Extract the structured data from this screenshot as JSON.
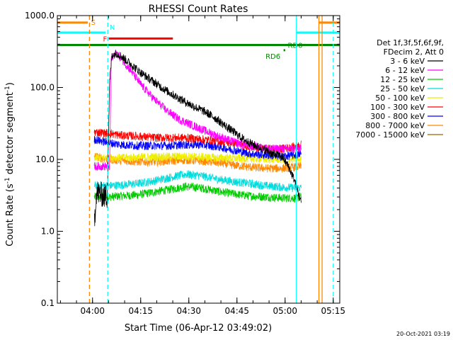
{
  "chart_data": {
    "type": "line",
    "title": "RHESSI Count Rates",
    "xlabel": "Start Time (06-Apr-12 03:49:02)",
    "ylabel_main": "Count Rate (s",
    "ylabel_sup1": "-1",
    "ylabel_mid": " detector segment",
    "ylabel_sup2": "-1",
    "ylabel_end": ")",
    "y_scale": "log",
    "ylim": [
      0.1,
      1000
    ],
    "xlim_minutes_after_start": [
      0,
      88
    ],
    "x_ticks": [
      {
        "label": "04:00",
        "minutes": 10.97
      },
      {
        "label": "04:15",
        "minutes": 25.97
      },
      {
        "label": "04:30",
        "minutes": 40.97
      },
      {
        "label": "04:45",
        "minutes": 55.97
      },
      {
        "label": "05:00",
        "minutes": 70.97
      },
      {
        "label": "05:15",
        "minutes": 85.97
      }
    ],
    "y_ticks": [
      {
        "label": "1000.0",
        "value": 1000
      },
      {
        "label": "100.0",
        "value": 100
      },
      {
        "label": "10.0",
        "value": 10
      },
      {
        "label": "1.0",
        "value": 1
      },
      {
        "label": "0.1",
        "value": 0.1
      }
    ],
    "legend": {
      "header1": "Det 1f,3f,5f,6f,9f,",
      "header2": "FDecim 2, Att 0",
      "placement": "right"
    },
    "series": [
      {
        "name": "3 - 6 keV",
        "color": "#000000",
        "points": [
          [
            11.5,
            1.3
          ],
          [
            12.2,
            3.5
          ],
          [
            14,
            3.2
          ],
          [
            15.5,
            3.0
          ],
          [
            16.3,
            120
          ],
          [
            17,
            280
          ],
          [
            18.5,
            300
          ],
          [
            20,
            270
          ],
          [
            23,
            210
          ],
          [
            26,
            160
          ],
          [
            30,
            120
          ],
          [
            34,
            90
          ],
          [
            38,
            70
          ],
          [
            42,
            56
          ],
          [
            46,
            46
          ],
          [
            49,
            38
          ],
          [
            52,
            30
          ],
          [
            55,
            24
          ],
          [
            58,
            19
          ],
          [
            61,
            16
          ],
          [
            64,
            14
          ],
          [
            67,
            12
          ],
          [
            70,
            11
          ],
          [
            72,
            8
          ],
          [
            74,
            5
          ],
          [
            75,
            3.5
          ],
          [
            76,
            2.5
          ]
        ]
      },
      {
        "name": "6 - 12 keV",
        "color": "#ff00ff",
        "points": [
          [
            11.5,
            8
          ],
          [
            14,
            8
          ],
          [
            16.3,
            8
          ],
          [
            16.8,
            250
          ],
          [
            18.5,
            300
          ],
          [
            20,
            250
          ],
          [
            23,
            170
          ],
          [
            26,
            110
          ],
          [
            30,
            70
          ],
          [
            34,
            48
          ],
          [
            38,
            36
          ],
          [
            42,
            30
          ],
          [
            46,
            25
          ],
          [
            50,
            21
          ],
          [
            54,
            18
          ],
          [
            58,
            16
          ],
          [
            62,
            15
          ],
          [
            66,
            14
          ],
          [
            70,
            14
          ],
          [
            74,
            14
          ],
          [
            76,
            14
          ]
        ]
      },
      {
        "name": "12 - 25 keV",
        "color": "#00cc00",
        "points": [
          [
            11.5,
            3.0
          ],
          [
            16,
            3.0
          ],
          [
            20,
            3.1
          ],
          [
            25,
            3.2
          ],
          [
            30,
            3.5
          ],
          [
            35,
            3.8
          ],
          [
            40,
            4.2
          ],
          [
            45,
            4.0
          ],
          [
            50,
            3.6
          ],
          [
            55,
            3.3
          ],
          [
            60,
            3.1
          ],
          [
            65,
            3.0
          ],
          [
            70,
            2.9
          ],
          [
            74,
            2.9
          ],
          [
            76,
            3.0
          ]
        ]
      },
      {
        "name": "25 - 50 keV",
        "color": "#00dddd",
        "points": [
          [
            11.5,
            4.3
          ],
          [
            16,
            4.3
          ],
          [
            20,
            4.4
          ],
          [
            25,
            4.6
          ],
          [
            30,
            5.0
          ],
          [
            35,
            5.6
          ],
          [
            40,
            6.2
          ],
          [
            45,
            5.9
          ],
          [
            50,
            5.3
          ],
          [
            55,
            4.9
          ],
          [
            60,
            4.6
          ],
          [
            65,
            4.3
          ],
          [
            70,
            4.1
          ],
          [
            74,
            4.0
          ],
          [
            76,
            4.0
          ]
        ]
      },
      {
        "name": "50 - 100 keV",
        "color": "#eeee00",
        "points": [
          [
            11.5,
            10.5
          ],
          [
            20,
            10.5
          ],
          [
            30,
            10.8
          ],
          [
            40,
            11.0
          ],
          [
            50,
            10.5
          ],
          [
            60,
            10.3
          ],
          [
            70,
            10.0
          ],
          [
            76,
            10.0
          ]
        ]
      },
      {
        "name": "100 - 300 keV",
        "color": "#ff0000",
        "points": [
          [
            11.5,
            24
          ],
          [
            16,
            23
          ],
          [
            20,
            21.5
          ],
          [
            25,
            21
          ],
          [
            30,
            20
          ],
          [
            35,
            20
          ],
          [
            40,
            20
          ],
          [
            45,
            19
          ],
          [
            50,
            18
          ],
          [
            55,
            17
          ],
          [
            60,
            15
          ],
          [
            65,
            14
          ],
          [
            70,
            14
          ],
          [
            74,
            15
          ],
          [
            76,
            16
          ]
        ]
      },
      {
        "name": "300 - 800 keV",
        "color": "#0000ff",
        "points": [
          [
            11.5,
            19
          ],
          [
            16,
            17
          ],
          [
            20,
            16
          ],
          [
            25,
            15.5
          ],
          [
            30,
            15.5
          ],
          [
            35,
            15.5
          ],
          [
            40,
            16
          ],
          [
            45,
            16
          ],
          [
            50,
            15
          ],
          [
            55,
            13.5
          ],
          [
            60,
            12
          ],
          [
            65,
            11.5
          ],
          [
            70,
            11
          ],
          [
            74,
            11.5
          ],
          [
            76,
            12
          ]
        ]
      },
      {
        "name": "800 - 7000 keV",
        "color": "#ff8800",
        "points": [
          [
            11.5,
            11
          ],
          [
            16,
            10
          ],
          [
            20,
            9.6
          ],
          [
            25,
            9.3
          ],
          [
            30,
            9.2
          ],
          [
            35,
            9.5
          ],
          [
            40,
            9.8
          ],
          [
            45,
            9.5
          ],
          [
            50,
            9.0
          ],
          [
            55,
            8.3
          ],
          [
            60,
            7.8
          ],
          [
            65,
            7.5
          ],
          [
            70,
            7.5
          ],
          [
            74,
            7.8
          ],
          [
            76,
            8.0
          ]
        ]
      },
      {
        "name": "7000 - 15000 keV",
        "color": "#996600",
        "points": []
      }
    ],
    "flags": {
      "S": {
        "label": "S",
        "color": "#ff8800",
        "y_value": 800,
        "segments": [
          [
            0,
            9.5
          ],
          [
            81.5,
            88
          ]
        ]
      },
      "N": {
        "label": "N",
        "color": "#00ffff",
        "y_value": 580,
        "segments": [
          [
            0,
            15
          ],
          [
            74.5,
            88
          ]
        ]
      },
      "F": {
        "label": "F",
        "color": "#ff0000",
        "y_value": 480,
        "segments": [
          [
            16,
            36
          ]
        ]
      },
      "RD6": {
        "label": "RD6",
        "color": "#008800",
        "y_value": 330,
        "segments": [
          [
            70.5,
            71
          ]
        ]
      },
      "RD0": {
        "label": "RD0",
        "color": "#008800",
        "y_value": 390,
        "segments": [
          [
            0,
            88
          ]
        ]
      }
    },
    "vertical_markers": [
      {
        "minutes": 10.0,
        "color": "#ff8800",
        "style": "dashed"
      },
      {
        "minutes": 15.7,
        "color": "#00ffff",
        "style": "dashed"
      },
      {
        "minutes": 74.5,
        "color": "#00ffff",
        "style": "solid"
      },
      {
        "minutes": 81.5,
        "color": "#ff8800",
        "style": "solid"
      },
      {
        "minutes": 82.5,
        "color": "#ff8800",
        "style": "solid"
      },
      {
        "minutes": 86.0,
        "color": "#00ffff",
        "style": "dashed"
      }
    ],
    "grid": false
  },
  "footer_timestamp": "20-Oct-2021 03:19"
}
